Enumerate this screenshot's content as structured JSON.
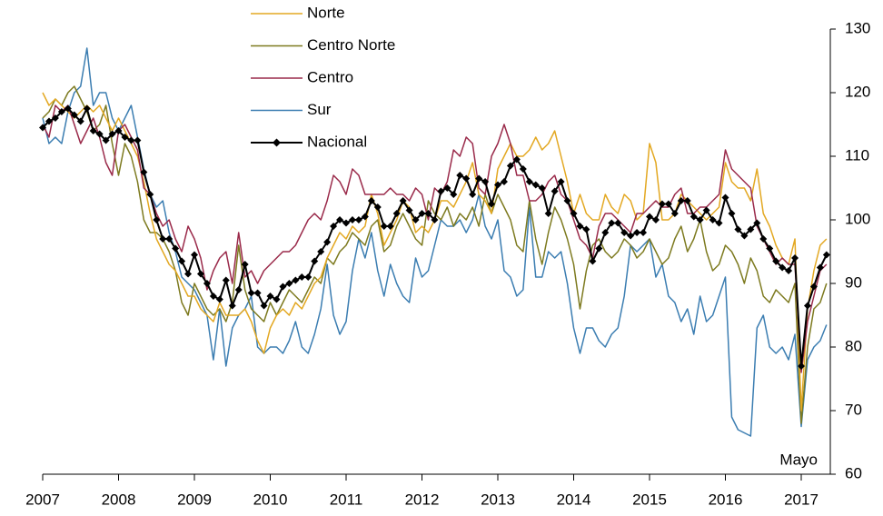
{
  "chart_data": {
    "type": "line",
    "categories": [
      "2007",
      null,
      null,
      null,
      null,
      null,
      null,
      null,
      null,
      null,
      null,
      null,
      "2008",
      null,
      null,
      null,
      null,
      null,
      null,
      null,
      null,
      null,
      null,
      null,
      "2009",
      null,
      null,
      null,
      null,
      null,
      null,
      null,
      null,
      null,
      null,
      null,
      "2010",
      null,
      null,
      null,
      null,
      null,
      null,
      null,
      null,
      null,
      null,
      null,
      "2011",
      null,
      null,
      null,
      null,
      null,
      null,
      null,
      null,
      null,
      null,
      null,
      "2012",
      null,
      null,
      null,
      null,
      null,
      null,
      null,
      null,
      null,
      null,
      null,
      "2013",
      null,
      null,
      null,
      null,
      null,
      null,
      null,
      null,
      null,
      null,
      null,
      "2014",
      null,
      null,
      null,
      null,
      null,
      null,
      null,
      null,
      null,
      null,
      null,
      "2015",
      null,
      null,
      null,
      null,
      null,
      null,
      null,
      null,
      null,
      null,
      null,
      "2016",
      null,
      null,
      null,
      null,
      null,
      null,
      null,
      null,
      null,
      null,
      null,
      "2017",
      null,
      null,
      null,
      null
    ],
    "annotation": "Mayo",
    "ylim": [
      60,
      130
    ],
    "yticks": [
      60,
      70,
      80,
      90,
      100,
      110,
      120,
      130
    ],
    "y_axis_side": "right",
    "series": [
      {
        "name": "Norte",
        "color": "#e3a822",
        "values": [
          120,
          118,
          119,
          118,
          117,
          116,
          117,
          118,
          117,
          118,
          116,
          114,
          116,
          114,
          112,
          110,
          106,
          101,
          97,
          95,
          93,
          92,
          90,
          88,
          88,
          86,
          85,
          84,
          87,
          85,
          85,
          85,
          86,
          84,
          81,
          79,
          83,
          85,
          86,
          85,
          87,
          86,
          88,
          90,
          91,
          94,
          96,
          98,
          97,
          99,
          98,
          99,
          104,
          101,
          96,
          98,
          100,
          103,
          102,
          98,
          99,
          98,
          100,
          103,
          103,
          102,
          104,
          106,
          109,
          104,
          103,
          101,
          108,
          110,
          112,
          110,
          110,
          111,
          113,
          111,
          112,
          114,
          110,
          106,
          101,
          104,
          101,
          100,
          100,
          104,
          102,
          101,
          104,
          103,
          100,
          101,
          112,
          109,
          100,
          100,
          101,
          104,
          103,
          102,
          101,
          100,
          101,
          102,
          109,
          106,
          105,
          105,
          103,
          108,
          101,
          99,
          96,
          94,
          93,
          97,
          70,
          86,
          92,
          96,
          97
        ]
      },
      {
        "name": "Centro Norte",
        "color": "#7d7a1f",
        "values": [
          116,
          117,
          119,
          118,
          120,
          121,
          119,
          117,
          114,
          115,
          118,
          112,
          107,
          112,
          110,
          106,
          100,
          98,
          98,
          97,
          95,
          92,
          87,
          85,
          90,
          88,
          86,
          85,
          86,
          84,
          87,
          96,
          89,
          86,
          85,
          84,
          87,
          85,
          87,
          89,
          88,
          87,
          89,
          91,
          90,
          94,
          93,
          95,
          96,
          98,
          97,
          96,
          99,
          100,
          95,
          96,
          99,
          101,
          99,
          97,
          96,
          103,
          101,
          100,
          102,
          99,
          101,
          100,
          102,
          99,
          104,
          101,
          104,
          102,
          100,
          96,
          95,
          103,
          97,
          93,
          98,
          102,
          100,
          97,
          93,
          86,
          92,
          96,
          97,
          95,
          94,
          95,
          97,
          96,
          94,
          95,
          97,
          95,
          93,
          94,
          97,
          99,
          95,
          97,
          100,
          95,
          92,
          93,
          96,
          95,
          93,
          90,
          94,
          92,
          88,
          87,
          89,
          88,
          87,
          90,
          68,
          80,
          86,
          87,
          90
        ]
      },
      {
        "name": "Centro",
        "color": "#9a2a4a",
        "values": [
          115,
          113,
          118,
          117,
          118,
          115,
          112,
          114,
          116,
          113,
          109,
          107,
          114,
          115,
          113,
          111,
          105,
          104,
          101,
          99,
          100,
          97,
          95,
          99,
          97,
          94,
          89,
          92,
          94,
          95,
          90,
          98,
          91,
          92,
          90,
          92,
          93,
          94,
          95,
          95,
          96,
          98,
          100,
          101,
          100,
          103,
          107,
          106,
          104,
          108,
          107,
          104,
          104,
          104,
          104,
          105,
          104,
          104,
          103,
          105,
          104,
          100,
          105,
          104,
          106,
          111,
          110,
          113,
          112,
          105,
          104,
          110,
          112,
          115,
          112,
          107,
          107,
          103,
          103,
          104,
          106,
          107,
          104,
          103,
          100,
          97,
          96,
          94,
          99,
          101,
          101,
          100,
          99,
          98,
          101,
          101,
          102,
          103,
          102,
          102,
          104,
          105,
          101,
          101,
          102,
          102,
          103,
          104,
          111,
          108,
          107,
          106,
          105,
          99,
          97,
          95,
          93,
          94,
          93,
          93,
          76,
          84,
          88,
          92,
          93
        ]
      },
      {
        "name": "Sur",
        "color": "#3b7db1",
        "values": [
          116,
          112,
          113,
          112,
          117,
          120,
          121,
          127,
          118,
          120,
          120,
          116,
          114,
          116,
          118,
          113,
          108,
          104,
          102,
          103,
          98,
          95,
          91,
          90,
          89,
          87,
          85,
          78,
          86,
          77,
          83,
          85,
          86,
          88,
          80,
          79,
          80,
          80,
          79,
          81,
          84,
          80,
          79,
          82,
          86,
          93,
          85,
          82,
          84,
          92,
          97,
          94,
          98,
          92,
          88,
          93,
          90,
          88,
          87,
          94,
          91,
          92,
          96,
          100,
          99,
          99,
          100,
          98,
          100,
          104,
          99,
          97,
          100,
          92,
          91,
          88,
          89,
          102,
          91,
          91,
          95,
          94,
          95,
          90,
          83,
          79,
          83,
          83,
          81,
          80,
          82,
          83,
          88,
          96,
          95,
          96,
          97,
          91,
          93,
          88,
          87,
          84,
          86,
          82,
          88,
          84,
          85,
          88,
          91,
          69,
          67,
          66.5,
          66,
          83,
          85,
          80,
          79,
          80,
          78,
          82,
          67.5,
          78,
          80,
          81,
          83.5
        ]
      },
      {
        "name": "Nacional",
        "color": "#000000",
        "marker": "diamond",
        "values": [
          114.5,
          115.5,
          116,
          117,
          117.5,
          116.5,
          115.5,
          117.5,
          114,
          113.5,
          112.5,
          113.5,
          114,
          113,
          112.5,
          112.5,
          107.5,
          104,
          100,
          97,
          97,
          95.5,
          93.5,
          91.5,
          94.5,
          91.5,
          90,
          88,
          87.5,
          90.5,
          86.5,
          89,
          93,
          88.5,
          88.5,
          86.5,
          88,
          87.5,
          89.5,
          90,
          90.5,
          91,
          91,
          93.5,
          95,
          96.5,
          99,
          100,
          99.5,
          100,
          100,
          100.5,
          103,
          102,
          99,
          99,
          101,
          103,
          101.5,
          100,
          101,
          101,
          100,
          104.5,
          105,
          104,
          107,
          106.5,
          104,
          106.5,
          106,
          102.5,
          105.5,
          106,
          108.5,
          109.5,
          108,
          106,
          105.5,
          105,
          101,
          104.5,
          106,
          103,
          101,
          99,
          98.5,
          93.5,
          95.5,
          98,
          99.5,
          99.5,
          98,
          97.5,
          98,
          98,
          100.5,
          100,
          102.5,
          102.5,
          101,
          103,
          103,
          100.5,
          100,
          101.5,
          100,
          99.5,
          103.5,
          101,
          98.5,
          97.5,
          98.5,
          99.5,
          97,
          95.5,
          93.5,
          92.5,
          92,
          94,
          77,
          86.5,
          89.5,
          92.5,
          94.5
        ]
      }
    ]
  }
}
